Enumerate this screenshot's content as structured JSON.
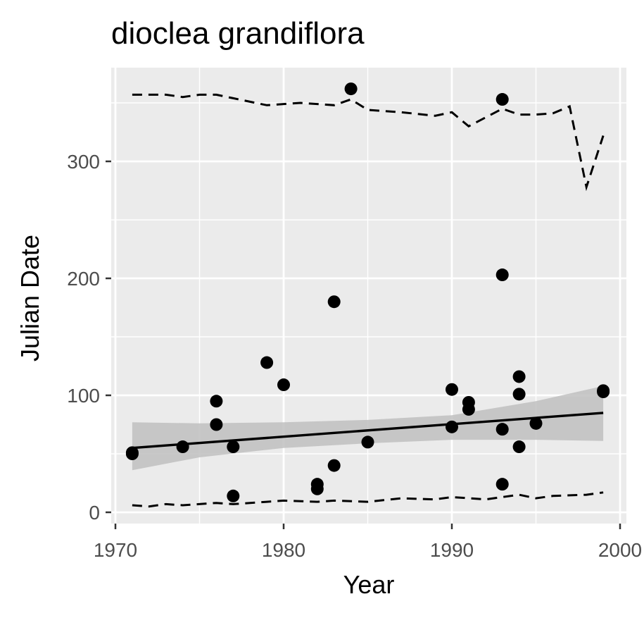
{
  "chart_data": {
    "type": "scatter",
    "title": "dioclea grandiflora",
    "xlabel": "Year",
    "ylabel": "Julian Date",
    "xlim": [
      1970,
      2000
    ],
    "ylim": [
      0,
      360
    ],
    "x_ticks": [
      1970,
      1980,
      1990,
      2000
    ],
    "y_ticks": [
      0,
      100,
      200,
      300
    ],
    "x_tick_labels": [
      "1970",
      "1980",
      "1990",
      "2000"
    ],
    "y_tick_labels": [
      "0",
      "100",
      "200",
      "300"
    ],
    "grid": true,
    "legend": "none",
    "colors": {
      "panel": "#ebebeb",
      "grid": "#ffffff",
      "points": "#000000",
      "ribbon": "#c0c0c0",
      "trend": "#000000",
      "quantile": "#000000"
    },
    "points": [
      {
        "x": 1971,
        "y": 51
      },
      {
        "x": 1971,
        "y": 50
      },
      {
        "x": 1974,
        "y": 56
      },
      {
        "x": 1976,
        "y": 95
      },
      {
        "x": 1976,
        "y": 75
      },
      {
        "x": 1977,
        "y": 56
      },
      {
        "x": 1977,
        "y": 14
      },
      {
        "x": 1979,
        "y": 128
      },
      {
        "x": 1980,
        "y": 109
      },
      {
        "x": 1982,
        "y": 24
      },
      {
        "x": 1982,
        "y": 20
      },
      {
        "x": 1983,
        "y": 180
      },
      {
        "x": 1983,
        "y": 40
      },
      {
        "x": 1984,
        "y": 362
      },
      {
        "x": 1985,
        "y": 60
      },
      {
        "x": 1990,
        "y": 105
      },
      {
        "x": 1990,
        "y": 73
      },
      {
        "x": 1991,
        "y": 94
      },
      {
        "x": 1991,
        "y": 88
      },
      {
        "x": 1993,
        "y": 353
      },
      {
        "x": 1993,
        "y": 203
      },
      {
        "x": 1993,
        "y": 71
      },
      {
        "x": 1993,
        "y": 24
      },
      {
        "x": 1994,
        "y": 116
      },
      {
        "x": 1994,
        "y": 101
      },
      {
        "x": 1994,
        "y": 56
      },
      {
        "x": 1995,
        "y": 76
      },
      {
        "x": 1999,
        "y": 104
      },
      {
        "x": 1999,
        "y": 103
      }
    ],
    "trend_line": {
      "x": [
        1971,
        1999
      ],
      "y": [
        55,
        85
      ]
    },
    "confidence_band": {
      "x": [
        1971,
        1975,
        1980,
        1985,
        1990,
        1995,
        1999
      ],
      "upper": [
        77,
        76,
        77,
        79,
        83,
        95,
        108
      ],
      "lower": [
        36,
        47,
        55,
        59,
        62,
        62,
        61
      ]
    },
    "upper_quantile": {
      "x": [
        1971,
        1973,
        1974,
        1975,
        1976,
        1977,
        1979,
        1981,
        1983,
        1984,
        1985,
        1987,
        1989,
        1990,
        1991,
        1993,
        1994,
        1995,
        1996,
        1997,
        1998,
        1999
      ],
      "y": [
        357,
        357,
        355,
        357,
        357,
        354,
        348,
        350,
        348,
        353,
        344,
        342,
        339,
        342,
        330,
        345,
        340,
        340,
        341,
        347,
        278,
        322
      ]
    },
    "lower_quantile": {
      "x": [
        1971,
        1972,
        1973,
        1974,
        1976,
        1977,
        1979,
        1980,
        1982,
        1983,
        1985,
        1987,
        1989,
        1990,
        1992,
        1993,
        1994,
        1995,
        1996,
        1998,
        1999
      ],
      "y": [
        6,
        5,
        7,
        6,
        8,
        7,
        9,
        10,
        9,
        10,
        9,
        12,
        11,
        13,
        11,
        13,
        15,
        12,
        14,
        15,
        17
      ]
    }
  }
}
